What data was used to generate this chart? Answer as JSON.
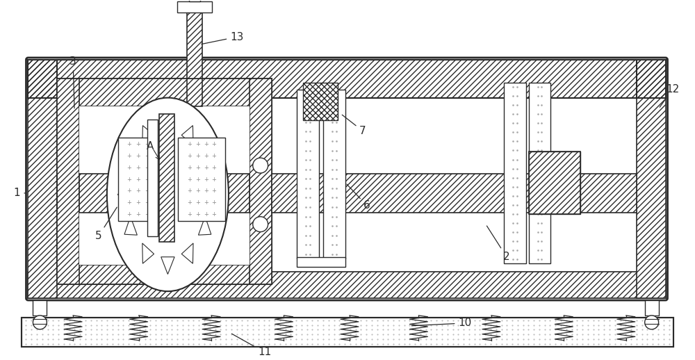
{
  "bg_color": "#ffffff",
  "line_color": "#2a2a2a",
  "figsize": [
    10.0,
    5.18
  ],
  "dpi": 100,
  "label_fs": 11
}
